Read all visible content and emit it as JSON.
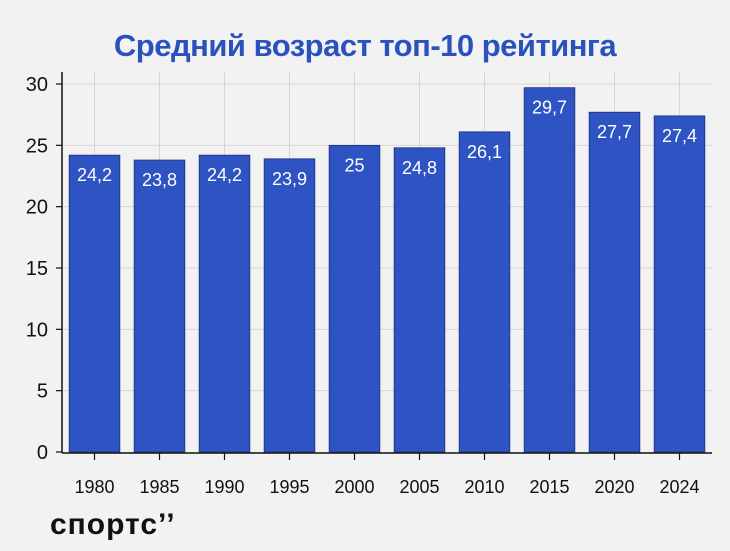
{
  "chart_data": {
    "type": "bar",
    "title": "Средний возраст топ-10 рейтинга",
    "xlabel": "",
    "ylabel": "",
    "categories": [
      "1980",
      "1985",
      "1990",
      "1995",
      "2000",
      "2005",
      "2010",
      "2015",
      "2020",
      "2024"
    ],
    "values": [
      24.2,
      23.8,
      24.2,
      23.9,
      25,
      24.8,
      26.1,
      29.7,
      27.7,
      27.4
    ],
    "value_labels": [
      "24,2",
      "23,8",
      "24,2",
      "23,9",
      "25",
      "24,8",
      "26,1",
      "29,7",
      "27,7",
      "27,4"
    ],
    "ylim": [
      0,
      30
    ],
    "yticks": [
      0,
      5,
      10,
      15,
      20,
      25,
      30
    ],
    "grid": true,
    "legend": "none"
  },
  "brand": {
    "logo_text": "спортс’’"
  },
  "colors": {
    "bar": "#2e54c4",
    "title": "#2a52be",
    "grid": "#d6d6d6",
    "background": "#f2f2f2",
    "axis": "#111111",
    "label_on_bar": "#ffffff"
  }
}
